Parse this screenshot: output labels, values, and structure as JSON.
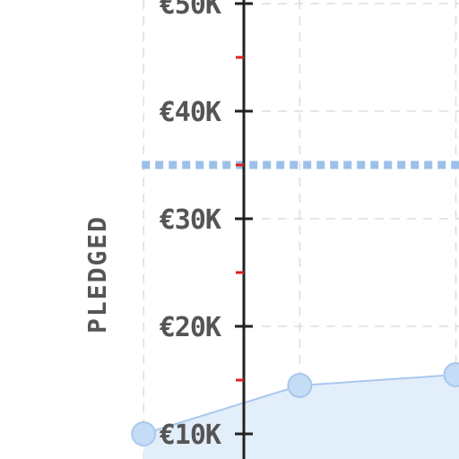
{
  "chart_data": {
    "type": "line",
    "ylabel": "PLEDGED",
    "y_ticks": [
      {
        "value": 10000,
        "label": "€10K"
      },
      {
        "value": 20000,
        "label": "€20K"
      },
      {
        "value": 30000,
        "label": "€30K"
      },
      {
        "value": 40000,
        "label": "€40K"
      },
      {
        "value": 50000,
        "label": "€50K"
      }
    ],
    "y_minor_ticks": [
      15000,
      25000,
      35000,
      45000
    ],
    "ylim": [
      9500,
      50000
    ],
    "x_index_range": [
      -0.92,
      2.02
    ],
    "grid": true,
    "series": [
      {
        "x": [
          0,
          1,
          2
        ],
        "values": [
          10000,
          14500,
          15500
        ]
      }
    ],
    "reference_line": {
      "value": 35000
    },
    "colors": {
      "series": "#a9c8ee",
      "fill": "#e3eefb",
      "reference": "#9cc0ea",
      "axis": "#222222",
      "minor_tick": "#e02020",
      "grid": "#dddddd",
      "text": "#555555"
    }
  }
}
